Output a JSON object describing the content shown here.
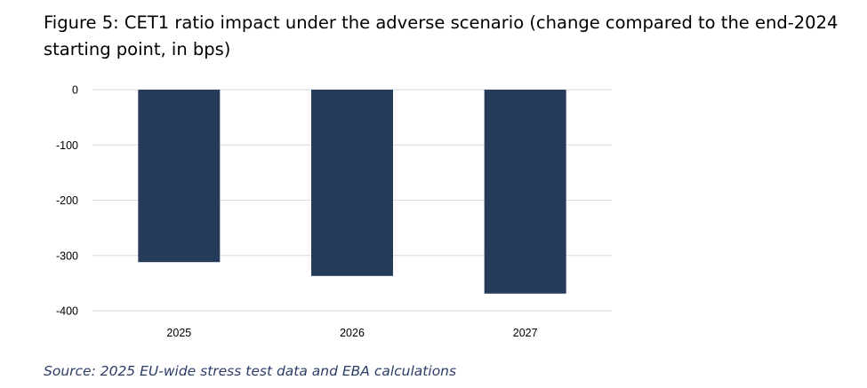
{
  "figure": {
    "title": "Figure 5: CET1 ratio impact under the adverse scenario (change compared to the end-2024 starting point, in bps)",
    "source": "Source: 2025 EU-wide stress test data and EBA calculations"
  },
  "chart_data": {
    "type": "bar",
    "categories": [
      "2025",
      "2026",
      "2027"
    ],
    "series": [
      {
        "values": [
          -312,
          -337,
          -369
        ]
      }
    ],
    "ylim": [
      -400,
      0
    ],
    "yticks": [
      0,
      -100,
      -200,
      -300,
      -400
    ],
    "xlabel": "",
    "ylabel": "",
    "grid": true,
    "legend": "none",
    "bar_color": "#243b5a",
    "grid_color": "#d9d9d9"
  }
}
